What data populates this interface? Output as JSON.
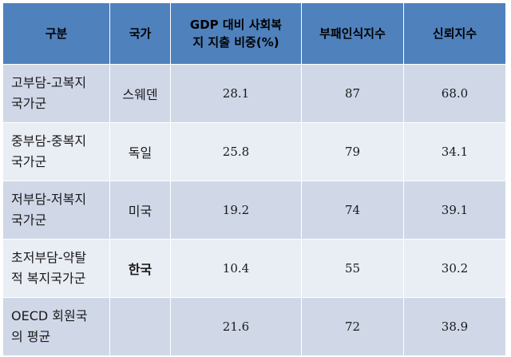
{
  "headers": [
    "구분",
    "국가",
    "GDP 대비 사회복지 지출 비중(%)",
    "부패인식지수",
    "신뢰지수"
  ],
  "header_gdp_line1": "GDP 대비 사회복",
  "header_gdp_line2": "지 지출 비중(%)",
  "rows": [
    {
      "group_line1": "고부담-고복지",
      "group_line2": "국가군",
      "country": "스웨덴",
      "gdp": "28.1",
      "corruption": "87",
      "trust": "68.0"
    },
    {
      "group_line1": "중부담-중복지",
      "group_line2": "국가군",
      "country": "독일",
      "gdp": "25.8",
      "corruption": "79",
      "trust": "34.1"
    },
    {
      "group_line1": "저부담-저복지",
      "group_line2": "국가군",
      "country": "미국",
      "gdp": "19.2",
      "corruption": "74",
      "trust": "39.1"
    },
    {
      "group_line1": "초저부담-약탈",
      "group_line2": "적 복지국가군",
      "country": "한국",
      "gdp": "10.4",
      "corruption": "55",
      "trust": "30.2"
    },
    {
      "group_line1": "OECD 회원국",
      "group_line2": "의 평균",
      "country": "",
      "gdp": "21.6",
      "corruption": "72",
      "trust": "38.9"
    }
  ]
}
